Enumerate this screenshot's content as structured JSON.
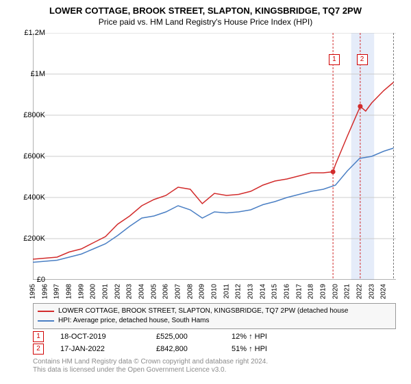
{
  "title": "LOWER COTTAGE, BROOK STREET, SLAPTON, KINGSBRIDGE, TQ7 2PW",
  "subtitle": "Price paid vs. HM Land Registry's House Price Index (HPI)",
  "chart": {
    "type": "line",
    "background_color": "#ffffff",
    "grid_color": "#cccccc",
    "xlim": [
      1995,
      2025
    ],
    "ylim": [
      0,
      1200000
    ],
    "ytick_step": 200000,
    "ytick_labels": [
      "£0",
      "£200K",
      "£400K",
      "£600K",
      "£800K",
      "£1M",
      "£1.2M"
    ],
    "xticks": [
      1995,
      1996,
      1997,
      1998,
      1999,
      2000,
      2001,
      2002,
      2003,
      2004,
      2005,
      2006,
      2007,
      2008,
      2009,
      2010,
      2011,
      2012,
      2013,
      2014,
      2015,
      2016,
      2017,
      2018,
      2019,
      2020,
      2021,
      2022,
      2023,
      2024
    ],
    "series": [
      {
        "name": "property",
        "color": "#d22b2b",
        "width": 1.5,
        "legend": "LOWER COTTAGE, BROOK STREET, SLAPTON, KINGSBRIDGE, TQ7 2PW (detached house",
        "years": [
          1995,
          1996,
          1997,
          1998,
          1999,
          2000,
          2001,
          2002,
          2003,
          2004,
          2005,
          2006,
          2007,
          2008,
          2009,
          2010,
          2011,
          2012,
          2013,
          2014,
          2015,
          2016,
          2017,
          2018,
          2019,
          2019.8,
          2020,
          2021,
          2022.05,
          2022.5,
          2023,
          2024,
          2024.8
        ],
        "values": [
          100000,
          105000,
          110000,
          135000,
          150000,
          180000,
          210000,
          270000,
          310000,
          360000,
          390000,
          410000,
          450000,
          440000,
          370000,
          420000,
          410000,
          415000,
          430000,
          460000,
          480000,
          490000,
          505000,
          520000,
          520000,
          525000,
          560000,
          700000,
          842800,
          820000,
          860000,
          920000,
          960000
        ]
      },
      {
        "name": "hpi",
        "color": "#4a7fc4",
        "width": 1.5,
        "legend": "HPI: Average price, detached house, South Hams",
        "years": [
          1995,
          1996,
          1997,
          1998,
          1999,
          2000,
          2001,
          2002,
          2003,
          2004,
          2005,
          2006,
          2007,
          2008,
          2009,
          2010,
          2011,
          2012,
          2013,
          2014,
          2015,
          2016,
          2017,
          2018,
          2019,
          2020,
          2021,
          2022,
          2023,
          2024,
          2024.8
        ],
        "values": [
          85000,
          90000,
          95000,
          110000,
          125000,
          150000,
          175000,
          215000,
          260000,
          300000,
          310000,
          330000,
          360000,
          340000,
          300000,
          330000,
          325000,
          330000,
          340000,
          365000,
          380000,
          400000,
          415000,
          430000,
          440000,
          460000,
          530000,
          590000,
          600000,
          625000,
          640000
        ]
      }
    ],
    "markers": [
      {
        "id": "1",
        "year": 2019.8,
        "value": 525000,
        "label_year": 2019.9,
        "label_value": 1070000
      },
      {
        "id": "2",
        "year": 2022.05,
        "value": 842800,
        "label_year": 2022.2,
        "label_value": 1070000
      }
    ],
    "shade": {
      "start_year": 2021.3,
      "end_year": 2023.2
    },
    "vlines": [
      {
        "year": 2019.8,
        "color": "#d22b2b",
        "dash": "3,2"
      },
      {
        "year": 2022.05,
        "color": "#d22b2b",
        "dash": "3,2"
      },
      {
        "year": 2024.8,
        "color": "#777777",
        "dash": "3,2"
      }
    ]
  },
  "events": [
    {
      "id": "1",
      "date": "18-OCT-2019",
      "price": "£525,000",
      "hpi": "12% ↑ HPI"
    },
    {
      "id": "2",
      "date": "17-JAN-2022",
      "price": "£842,800",
      "hpi": "51% ↑ HPI"
    }
  ],
  "footer1": "Contains HM Land Registry data © Crown copyright and database right 2024.",
  "footer2": "This data is licensed under the Open Government Licence v3.0."
}
